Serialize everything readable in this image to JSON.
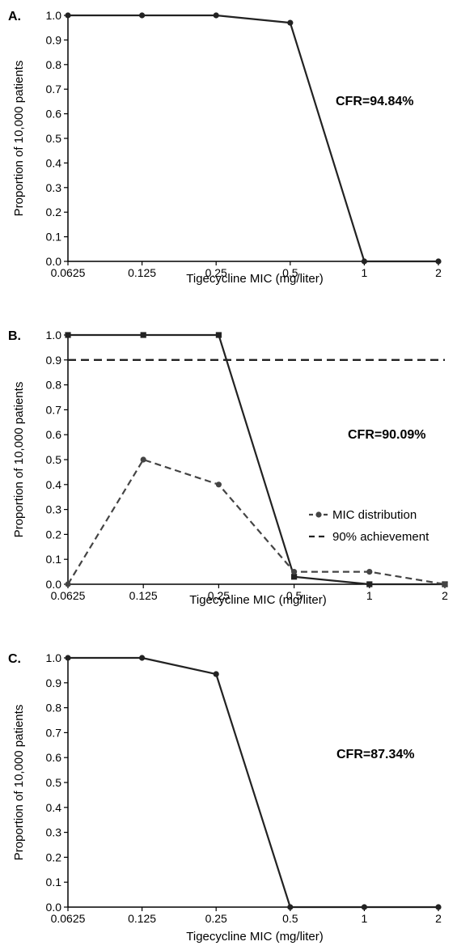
{
  "chart_data": [
    {
      "type": "line",
      "panel_label": "A.",
      "xlabel": "Tigecycline MIC (mg/liter)",
      "ylabel": "Proportion of 10,000 patients",
      "categories": [
        "0.0625",
        "0.125",
        "0.25",
        "0.5",
        "1",
        "2"
      ],
      "ylim": [
        0,
        1
      ],
      "yticks": [
        "0.0",
        "0.1",
        "0.2",
        "0.3",
        "0.4",
        "0.5",
        "0.6",
        "0.7",
        "0.8",
        "0.9",
        "1.0"
      ],
      "annotation": "CFR=94.84%",
      "series": [
        {
          "values": [
            1.0,
            1.0,
            1.0,
            0.97,
            0.0,
            0.0
          ],
          "style": "solid",
          "marker": "circle"
        }
      ]
    },
    {
      "type": "line",
      "panel_label": "B.",
      "xlabel": "Tigecycline MIC (mg/liter)",
      "ylabel": "Proportion of 10,000 patients",
      "categories": [
        "0.0625",
        "0.125",
        "0.25",
        "0.5",
        "1",
        "2"
      ],
      "ylim": [
        0,
        1
      ],
      "yticks": [
        "0.0",
        "0.1",
        "0.2",
        "0.3",
        "0.4",
        "0.5",
        "0.6",
        "0.7",
        "0.8",
        "0.9",
        "1.0"
      ],
      "annotation": "CFR=90.09%",
      "legend_position": "lower-right",
      "series": [
        {
          "values": [
            1.0,
            1.0,
            1.0,
            0.03,
            0.0,
            0.0
          ],
          "style": "solid",
          "marker": "square"
        },
        {
          "name": "MIC distribution",
          "values": [
            0.0,
            0.5,
            0.4,
            0.05,
            0.05,
            0.0
          ],
          "style": "dashed",
          "marker": "circle"
        },
        {
          "name": "90% achievement",
          "values": [
            0.9,
            0.9,
            0.9,
            0.9,
            0.9,
            0.9
          ],
          "style": "dashed-heavy",
          "marker": "none"
        }
      ]
    },
    {
      "type": "line",
      "panel_label": "C.",
      "xlabel": "Tigecycline MIC (mg/liter)",
      "ylabel": "Proportion of 10,000 patients",
      "categories": [
        "0.0625",
        "0.125",
        "0.25",
        "0.5",
        "1",
        "2"
      ],
      "ylim": [
        0,
        1
      ],
      "yticks": [
        "0.0",
        "0.1",
        "0.2",
        "0.3",
        "0.4",
        "0.5",
        "0.6",
        "0.7",
        "0.8",
        "0.9",
        "1.0"
      ],
      "annotation": "CFR=87.34%",
      "series": [
        {
          "values": [
            1.0,
            1.0,
            0.935,
            0.0,
            0.0,
            0.0
          ],
          "style": "solid",
          "marker": "circle"
        }
      ]
    }
  ],
  "colors": {
    "line": "#222222",
    "axis": "#000000",
    "background": "#ffffff"
  }
}
